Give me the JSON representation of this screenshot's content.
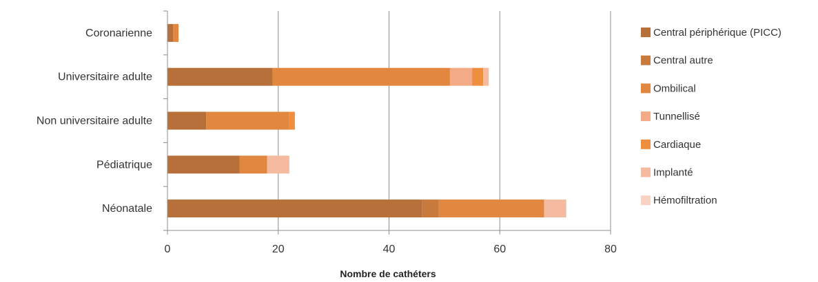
{
  "chart_data": {
    "type": "bar",
    "orientation": "horizontal",
    "stacked": true,
    "categories": [
      "Coronarienne",
      "Universitaire adulte",
      "Non universitaire adulte",
      "Pédiatrique",
      "Néonatale"
    ],
    "series": [
      {
        "name": "Central périphérique (PICC)",
        "color": "#b8703a",
        "values": [
          1,
          19,
          7,
          13,
          46
        ]
      },
      {
        "name": "Central autre",
        "color": "#c87a3c",
        "values": [
          0,
          0,
          0,
          0,
          3
        ]
      },
      {
        "name": "Ombilical",
        "color": "#e1873f",
        "values": [
          1,
          32,
          15,
          5,
          19
        ]
      },
      {
        "name": "Tunnellisé",
        "color": "#f2ab86",
        "values": [
          0,
          4,
          0,
          0,
          0
        ]
      },
      {
        "name": "Cardiaque",
        "color": "#ee8e3f",
        "values": [
          0,
          2,
          1,
          0,
          0
        ]
      },
      {
        "name": "Implanté",
        "color": "#f5bba0",
        "values": [
          0,
          1,
          0,
          4,
          4
        ]
      },
      {
        "name": "Hémofiltration",
        "color": "#f8d2c2",
        "values": [
          0,
          0,
          0,
          0,
          0
        ]
      }
    ],
    "xlabel": "Nombre de cathéters",
    "ylabel": "",
    "xlim": [
      0,
      80
    ],
    "xticks": [
      0,
      20,
      40,
      60,
      80
    ],
    "grid": true,
    "legend_position": "right"
  }
}
